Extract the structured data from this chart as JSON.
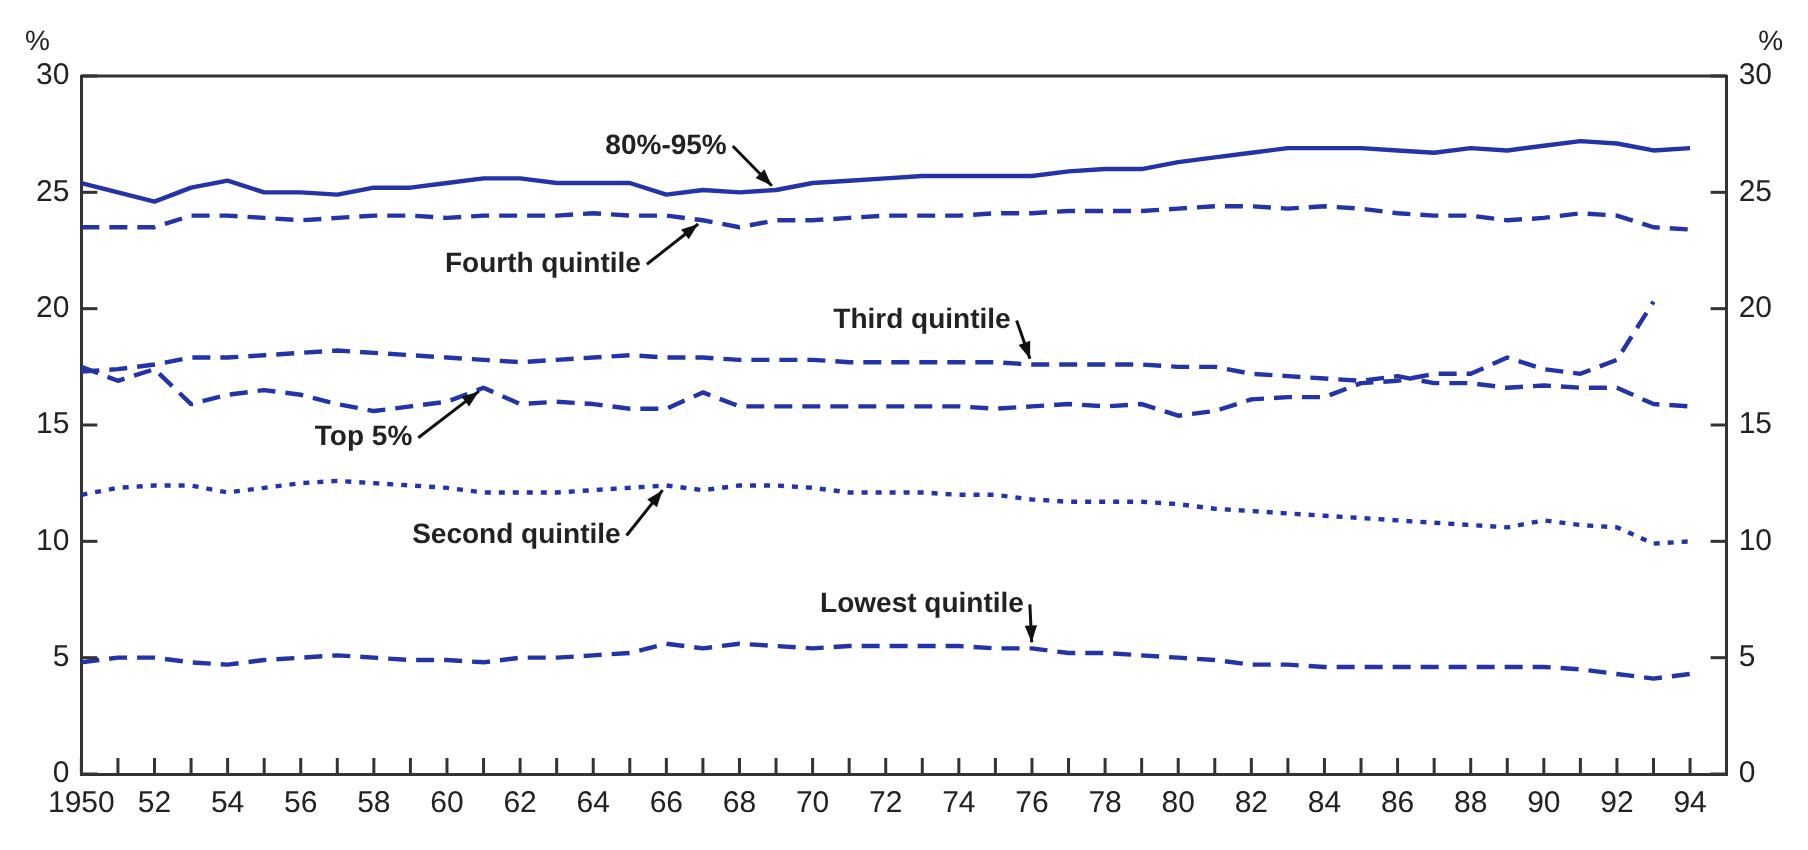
{
  "chart_data": {
    "type": "line",
    "ylabel": "%",
    "y2label": "%",
    "x": [
      1950,
      1951,
      1952,
      1953,
      1954,
      1955,
      1956,
      1957,
      1958,
      1959,
      1960,
      1961,
      1962,
      1963,
      1964,
      1965,
      1966,
      1967,
      1968,
      1969,
      1970,
      1971,
      1972,
      1973,
      1974,
      1975,
      1976,
      1977,
      1978,
      1979,
      1980,
      1981,
      1982,
      1983,
      1984,
      1985,
      1986,
      1987,
      1988,
      1989,
      1990,
      1991,
      1992,
      1993,
      1994
    ],
    "series": [
      {
        "name": "80%-95%",
        "color": "#2433a6",
        "line_style": "solid",
        "values": [
          25.4,
          25.0,
          24.6,
          25.2,
          25.5,
          25.0,
          25.0,
          24.9,
          25.2,
          25.2,
          25.4,
          25.6,
          25.6,
          25.4,
          25.4,
          25.4,
          24.9,
          25.1,
          25.0,
          25.1,
          25.4,
          25.5,
          25.6,
          25.7,
          25.7,
          25.7,
          25.7,
          25.9,
          26.0,
          26.0,
          26.3,
          26.5,
          26.7,
          26.9,
          26.9,
          26.9,
          26.8,
          26.7,
          26.9,
          26.8,
          27.0,
          27.2,
          27.1,
          26.8,
          26.9
        ]
      },
      {
        "name": "Fourth quintile",
        "color": "#2433a6",
        "line_style": "dashed",
        "values": [
          23.5,
          23.5,
          23.5,
          24.0,
          24.0,
          23.9,
          23.8,
          23.9,
          24.0,
          24.0,
          23.9,
          24.0,
          24.0,
          24.0,
          24.1,
          24.0,
          24.0,
          23.8,
          23.5,
          23.8,
          23.8,
          23.9,
          24.0,
          24.0,
          24.0,
          24.1,
          24.1,
          24.2,
          24.2,
          24.2,
          24.3,
          24.4,
          24.4,
          24.3,
          24.4,
          24.3,
          24.1,
          24.0,
          24.0,
          23.8,
          23.9,
          24.1,
          24.0,
          23.5,
          23.4
        ]
      },
      {
        "name": "Third quintile",
        "color": "#2433a6",
        "line_style": "dashed",
        "values": [
          17.3,
          17.4,
          17.6,
          17.9,
          17.9,
          18.0,
          18.1,
          18.2,
          18.1,
          18.0,
          17.9,
          17.8,
          17.7,
          17.8,
          17.9,
          18.0,
          17.9,
          17.9,
          17.8,
          17.8,
          17.8,
          17.7,
          17.7,
          17.7,
          17.7,
          17.7,
          17.6,
          17.6,
          17.6,
          17.6,
          17.5,
          17.5,
          17.2,
          17.1,
          17.0,
          16.9,
          17.1,
          16.8,
          16.8,
          16.6,
          16.7,
          16.6,
          16.6,
          15.9,
          15.8
        ]
      },
      {
        "name": "Top 5%",
        "color": "#2433a6",
        "line_style": "dashed",
        "values": [
          17.5,
          16.9,
          17.4,
          15.9,
          16.3,
          16.5,
          16.3,
          15.9,
          15.6,
          15.8,
          16.0,
          16.6,
          15.9,
          16.0,
          15.9,
          15.7,
          15.7,
          16.4,
          15.8,
          15.8,
          15.8,
          15.8,
          15.8,
          15.8,
          15.8,
          15.7,
          15.8,
          15.9,
          15.8,
          15.9,
          15.4,
          15.6,
          16.1,
          16.2,
          16.2,
          16.8,
          16.9,
          17.2,
          17.2,
          17.9,
          17.4,
          17.2,
          17.8,
          20.3,
          null
        ]
      },
      {
        "name": "Second quintile",
        "color": "#2433a6",
        "line_style": "dotted",
        "values": [
          12.0,
          12.3,
          12.4,
          12.4,
          12.1,
          12.3,
          12.5,
          12.6,
          12.5,
          12.4,
          12.3,
          12.1,
          12.1,
          12.1,
          12.2,
          12.3,
          12.4,
          12.2,
          12.4,
          12.4,
          12.3,
          12.1,
          12.1,
          12.1,
          12.0,
          12.0,
          11.8,
          11.7,
          11.7,
          11.7,
          11.6,
          11.4,
          11.3,
          11.2,
          11.1,
          11.0,
          10.9,
          10.8,
          10.7,
          10.6,
          10.9,
          10.7,
          10.6,
          9.9,
          10.0
        ]
      },
      {
        "name": "Lowest quintile",
        "color": "#2433a6",
        "line_style": "dashed",
        "values": [
          4.8,
          5.0,
          5.0,
          4.8,
          4.7,
          4.9,
          5.0,
          5.1,
          5.0,
          4.9,
          4.9,
          4.8,
          5.0,
          5.0,
          5.1,
          5.2,
          5.6,
          5.4,
          5.6,
          5.5,
          5.4,
          5.5,
          5.5,
          5.5,
          5.5,
          5.4,
          5.4,
          5.2,
          5.2,
          5.1,
          5.0,
          4.9,
          4.7,
          4.7,
          4.6,
          4.6,
          4.6,
          4.6,
          4.6,
          4.6,
          4.6,
          4.5,
          4.3,
          4.1,
          4.3
        ]
      }
    ],
    "xlim": [
      1950,
      1995
    ],
    "xticks": [
      {
        "value": 1950,
        "label": "1950"
      },
      {
        "value": 1951,
        "label": null
      },
      {
        "value": 1952,
        "label": "52"
      },
      {
        "value": 1953,
        "label": null
      },
      {
        "value": 1954,
        "label": "54"
      },
      {
        "value": 1955,
        "label": null
      },
      {
        "value": 1956,
        "label": "56"
      },
      {
        "value": 1957,
        "label": null
      },
      {
        "value": 1958,
        "label": "58"
      },
      {
        "value": 1959,
        "label": null
      },
      {
        "value": 1960,
        "label": "60"
      },
      {
        "value": 1961,
        "label": null
      },
      {
        "value": 1962,
        "label": "62"
      },
      {
        "value": 1963,
        "label": null
      },
      {
        "value": 1964,
        "label": "64"
      },
      {
        "value": 1965,
        "label": null
      },
      {
        "value": 1966,
        "label": "66"
      },
      {
        "value": 1967,
        "label": null
      },
      {
        "value": 1968,
        "label": "68"
      },
      {
        "value": 1969,
        "label": null
      },
      {
        "value": 1970,
        "label": "70"
      },
      {
        "value": 1971,
        "label": null
      },
      {
        "value": 1972,
        "label": "72"
      },
      {
        "value": 1973,
        "label": null
      },
      {
        "value": 1974,
        "label": "74"
      },
      {
        "value": 1975,
        "label": null
      },
      {
        "value": 1976,
        "label": "76"
      },
      {
        "value": 1977,
        "label": null
      },
      {
        "value": 1978,
        "label": "78"
      },
      {
        "value": 1979,
        "label": null
      },
      {
        "value": 1980,
        "label": "80"
      },
      {
        "value": 1981,
        "label": null
      },
      {
        "value": 1982,
        "label": "82"
      },
      {
        "value": 1983,
        "label": null
      },
      {
        "value": 1984,
        "label": "84"
      },
      {
        "value": 1985,
        "label": null
      },
      {
        "value": 1986,
        "label": "86"
      },
      {
        "value": 1987,
        "label": null
      },
      {
        "value": 1988,
        "label": "88"
      },
      {
        "value": 1989,
        "label": null
      },
      {
        "value": 1990,
        "label": "90"
      },
      {
        "value": 1991,
        "label": null
      },
      {
        "value": 1992,
        "label": "92"
      },
      {
        "value": 1993,
        "label": null
      },
      {
        "value": 1994,
        "label": "94"
      }
    ],
    "ylim": [
      0,
      30
    ],
    "yticks": [
      0,
      5,
      10,
      15,
      20,
      25,
      30
    ],
    "y2lim": [
      0,
      30
    ],
    "y2ticks": [
      0,
      5,
      10,
      15,
      20,
      25,
      30
    ],
    "grid": false,
    "legend": false,
    "marker": "none"
  }
}
